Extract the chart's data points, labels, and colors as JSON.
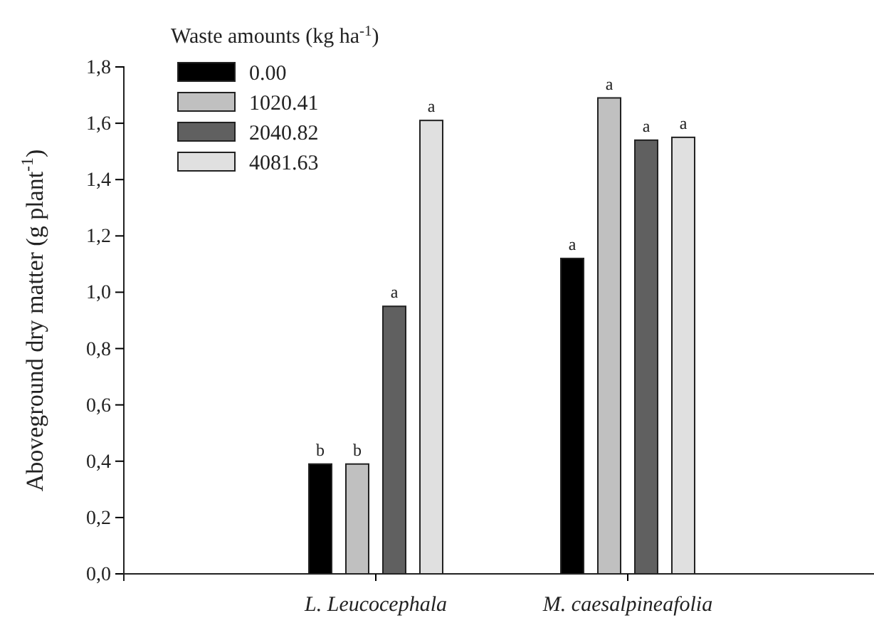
{
  "chart_data": {
    "type": "bar",
    "ylabel": "Aboveground dry matter (g plant$^{-1}$)",
    "legend_title": "Waste amounts (kg ha$^{-1}$)",
    "legend": "top left",
    "categories": [
      "L. Leucocephala",
      "M. caesalpineafolia"
    ],
    "series": [
      {
        "name": "0.00",
        "color": "#000000",
        "values": [
          0.39,
          1.12
        ],
        "value_labels": [
          "b",
          "a"
        ]
      },
      {
        "name": "1020.41",
        "color": "#c0c0c0",
        "values": [
          0.39,
          1.69
        ],
        "value_labels": [
          "b",
          "a"
        ]
      },
      {
        "name": "2040.82",
        "color": "#606060",
        "values": [
          0.95,
          1.54
        ],
        "value_labels": [
          "a",
          "a"
        ]
      },
      {
        "name": "4081.63",
        "color": "#e0e0e0",
        "values": [
          1.61,
          1.55
        ],
        "value_labels": [
          "a",
          "a"
        ]
      }
    ],
    "ylim": [
      0,
      1.8
    ],
    "yticks": [
      {
        "value": 0,
        "label": "0,0"
      },
      {
        "value": 0.2,
        "label": "0,2"
      },
      {
        "value": 0.4,
        "label": "0,4"
      },
      {
        "value": 0.6,
        "label": "0,6"
      },
      {
        "value": 0.8,
        "label": "0,8"
      },
      {
        "value": 1,
        "label": "1,0"
      },
      {
        "value": 1.2,
        "label": "1,2"
      },
      {
        "value": 1.4,
        "label": "1,4"
      },
      {
        "value": 1.6,
        "label": "1,6"
      },
      {
        "value": 1.8,
        "label": "1,8"
      }
    ]
  }
}
